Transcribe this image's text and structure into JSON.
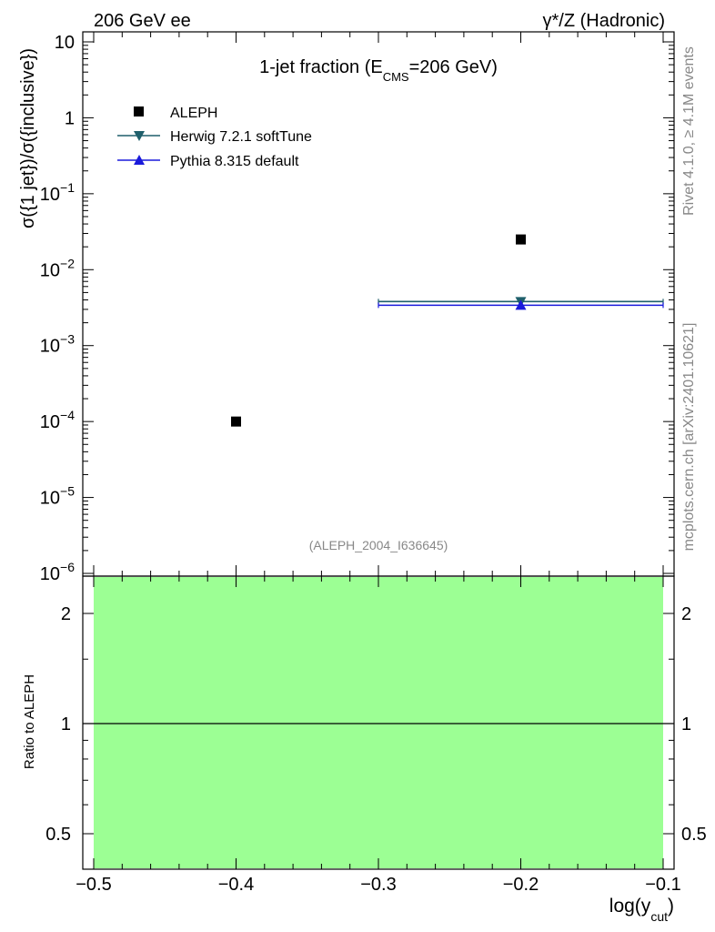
{
  "header": {
    "left": "206 GeV ee",
    "right": "γ*/Z (Hadronic)"
  },
  "side_labels": {
    "rivet": "Rivet 4.1.0, ≥ 4.1M events",
    "mcplots": "mcplots.cern.ch [arXiv:2401.10621]"
  },
  "colors": {
    "aleph": "#000000",
    "herwig": "#1f5f6b",
    "pythia": "#1a1adb",
    "ratio_band": "#9cff94"
  },
  "chart_data": [
    {
      "type": "scatter",
      "title": "1-jet fraction (E",
      "title_sub": "CMS",
      "title_tail": "=206 GeV)",
      "ylabel": "σ({1 jet})/σ({inclusive})",
      "xlabel": "log(y",
      "xlabel_sub": "cut",
      "xlabel_tail": ")",
      "yscale": "log",
      "ylim": [
        1e-06,
        15
      ],
      "xlim": [
        -0.5,
        -0.1
      ],
      "analysis_id": "(ALEPH_2004_I636645)",
      "ytick_labels": [
        {
          "value": 10,
          "base": "10",
          "exp": ""
        },
        {
          "value": 1,
          "base": "1",
          "exp": ""
        },
        {
          "value": 0.1,
          "base": "10",
          "exp": "−1"
        },
        {
          "value": 0.01,
          "base": "10",
          "exp": "−2"
        },
        {
          "value": 0.001,
          "base": "10",
          "exp": "−3"
        },
        {
          "value": 0.0001,
          "base": "10",
          "exp": "−4"
        },
        {
          "value": 1e-05,
          "base": "10",
          "exp": "−5"
        },
        {
          "value": 1e-06,
          "base": "10",
          "exp": "−6"
        }
      ],
      "legend": [
        {
          "label": "ALEPH",
          "marker": "square"
        },
        {
          "label": "Herwig 7.2.1 softTune",
          "marker": "triangle-down"
        },
        {
          "label": "Pythia 8.315 default",
          "marker": "triangle-up"
        }
      ],
      "series": [
        {
          "name": "ALEPH",
          "points": [
            {
              "x": -0.4,
              "y": 0.0001
            },
            {
              "x": -0.2,
              "y": 0.025
            }
          ]
        },
        {
          "name": "Herwig 7.2.1 softTune",
          "points": [
            {
              "x": -0.2,
              "y": 0.0038,
              "xlow": -0.3,
              "xhigh": -0.1
            }
          ]
        },
        {
          "name": "Pythia 8.315 default",
          "points": [
            {
              "x": -0.2,
              "y": 0.0034,
              "xlow": -0.3,
              "xhigh": -0.1
            }
          ]
        }
      ]
    },
    {
      "type": "line",
      "ylabel": "Ratio to ALEPH",
      "yscale": "log",
      "ylim": [
        0.38,
        2.35
      ],
      "xlim": [
        -0.5,
        -0.1
      ],
      "yticks": [
        0.5,
        1,
        2
      ],
      "ytick_labels": [
        "0.5",
        "1",
        "2"
      ],
      "xticks": [
        -0.5,
        -0.4,
        -0.3,
        -0.2,
        -0.1
      ],
      "xtick_labels": [
        "−0.5",
        "−0.4",
        "−0.3",
        "−0.2",
        "−0.1"
      ],
      "band": {
        "x_from": -0.5,
        "x_to": -0.1,
        "y_from": 0.38,
        "y_to": 2.35
      },
      "reference_line": 1
    }
  ]
}
